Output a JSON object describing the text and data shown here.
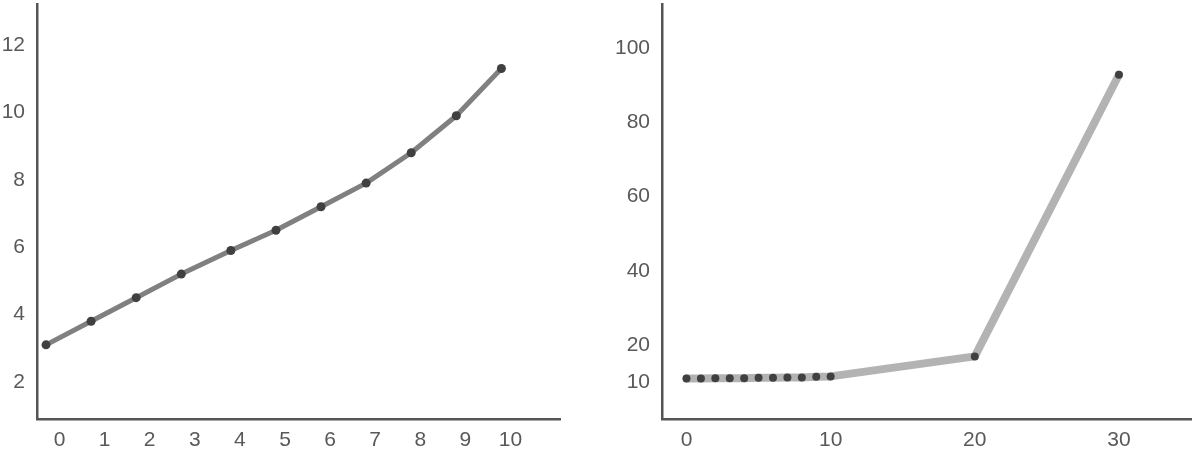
{
  "chart_data": [
    {
      "type": "line",
      "x": [
        -0.3,
        0.7,
        1.7,
        2.7,
        3.8,
        4.8,
        5.8,
        6.8,
        7.8,
        8.8,
        9.8
      ],
      "series": [
        {
          "color": "#808080",
          "colors": [
            "#404040",
            "#404040",
            "#404040",
            "#404040",
            "#404040",
            "#404040",
            "#404040",
            "#404040",
            "#404040",
            "#404040",
            "#404040"
          ],
          "values": [
            3.1,
            3.8,
            4.5,
            5.2,
            5.9,
            6.5,
            7.2,
            7.9,
            8.8,
            9.9,
            11.3
          ]
        }
      ],
      "xlim": [
        -0.5,
        11.1
      ],
      "xticks": [
        0,
        1,
        2,
        3,
        4,
        5,
        6,
        7,
        8,
        9,
        10
      ],
      "ylim": [
        0.9,
        13.2
      ],
      "yticks": [
        2,
        4,
        6,
        8,
        10,
        12
      ],
      "marker": "circle"
    },
    {
      "type": "line",
      "x": [
        0,
        1,
        2,
        3,
        4,
        5,
        6,
        7,
        8,
        9,
        10,
        20,
        30
      ],
      "series": [
        {
          "color": "#b3b3b3",
          "colors": [
            "#404040",
            "#404040",
            "#404040",
            "#404040",
            "#404040",
            "#404040",
            "#404040",
            "#404040",
            "#404040",
            "#404040",
            "#404040",
            "#404040",
            "#404040"
          ],
          "values": [
            10.9,
            10.9,
            11,
            11,
            11,
            11.1,
            11.1,
            11.2,
            11.2,
            11.4,
            11.5,
            16.9,
            92.9
          ]
        }
      ],
      "xlim": [
        -1.7,
        35
      ],
      "xticks": [
        0,
        10,
        20,
        30
      ],
      "ylim": [
        0,
        112
      ],
      "yticks": [
        10,
        20,
        40,
        60,
        80,
        100
      ],
      "marker": "circle"
    }
  ]
}
